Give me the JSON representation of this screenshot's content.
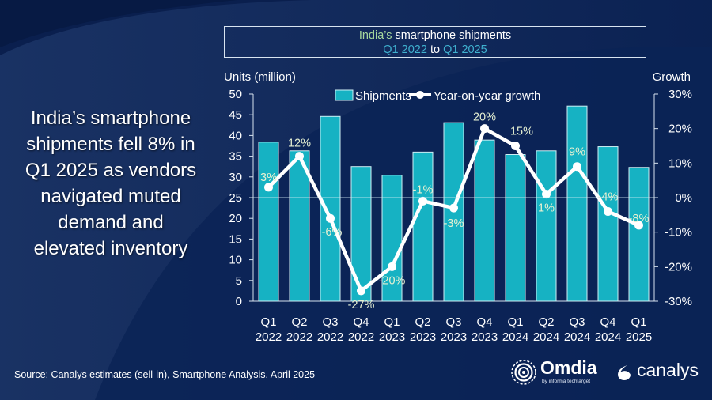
{
  "headline": {
    "lines": [
      "India’s smartphone",
      "shipments fell 8% in",
      "Q1 2025 as vendors",
      "navigated muted",
      "demand and",
      "elevated inventory"
    ]
  },
  "title": {
    "part1_accent": "India’s",
    "part1_rest": " smartphone shipments",
    "part2_start": "Q1 2022",
    "part2_mid": " to ",
    "part2_end": "Q1 2025"
  },
  "colors": {
    "background": "#0c2556",
    "bar_fill": "#16b2c3",
    "bar_border": "#cfeff4",
    "line": "#ffffff",
    "title_accent_green": "#a6d89c",
    "title_accent_cyan": "#3fb0cf",
    "data_label": "#e6f0d2"
  },
  "chart_data": {
    "type": "bar+line",
    "title": "India’s smartphone shipments Q1 2022 to Q1 2025",
    "categories": [
      "Q1 2022",
      "Q2 2022",
      "Q3 2022",
      "Q4 2022",
      "Q1 2023",
      "Q2 2023",
      "Q3 2023",
      "Q4 2023",
      "Q1 2024",
      "Q2 2024",
      "Q3 2024",
      "Q4 2024",
      "Q1 2025"
    ],
    "category_lines": [
      [
        "Q1",
        "2022"
      ],
      [
        "Q2",
        "2022"
      ],
      [
        "Q3",
        "2022"
      ],
      [
        "Q4",
        "2022"
      ],
      [
        "Q1",
        "2023"
      ],
      [
        "Q2",
        "2023"
      ],
      [
        "Q3",
        "2023"
      ],
      [
        "Q4",
        "2023"
      ],
      [
        "Q1",
        "2024"
      ],
      [
        "Q2",
        "2024"
      ],
      [
        "Q3",
        "2024"
      ],
      [
        "Q4",
        "2024"
      ],
      [
        "Q1",
        "2025"
      ]
    ],
    "series": [
      {
        "name": "Shipments",
        "type": "bar",
        "axis": "left",
        "values": [
          38.4,
          36.3,
          44.6,
          32.5,
          30.4,
          36.0,
          43.1,
          38.9,
          35.4,
          36.3,
          47.1,
          37.3,
          32.3
        ]
      },
      {
        "name": "Year-on-year growth",
        "type": "line",
        "axis": "right",
        "values": [
          3,
          12,
          -6,
          -27,
          -20,
          -1,
          -3,
          20,
          15,
          1,
          9,
          -4,
          -8
        ],
        "labels": [
          "3%",
          "12%",
          "-6%",
          "-27%",
          "-20%",
          "-1%",
          "-3%",
          "20%",
          "15%",
          "1%",
          "9%",
          "-4%",
          "-8%"
        ]
      }
    ],
    "ylabel_left": "Units (million)",
    "ylabel_right": "Growth",
    "ylim_left": [
      0,
      50
    ],
    "yticks_left": [
      0,
      5,
      10,
      15,
      20,
      25,
      30,
      35,
      40,
      45,
      50
    ],
    "ylim_right": [
      -30,
      30
    ],
    "yticks_right": [
      -30,
      -20,
      -10,
      0,
      10,
      20,
      30
    ],
    "ytick_labels_right": [
      "-30%",
      "-20%",
      "-10%",
      "0%",
      "10%",
      "20%",
      "30%"
    ],
    "legend": {
      "position": "top-center",
      "entries": [
        "Shipments",
        "Year-on-year growth"
      ]
    },
    "grid": false,
    "zero_line_right": true
  },
  "source": "Source: Canalys estimates (sell-in), Smartphone Analysis, April 2025",
  "logos": {
    "omdia": "Omdia",
    "omdia_sub": "by informa techtarget",
    "canalys": "canalys"
  }
}
